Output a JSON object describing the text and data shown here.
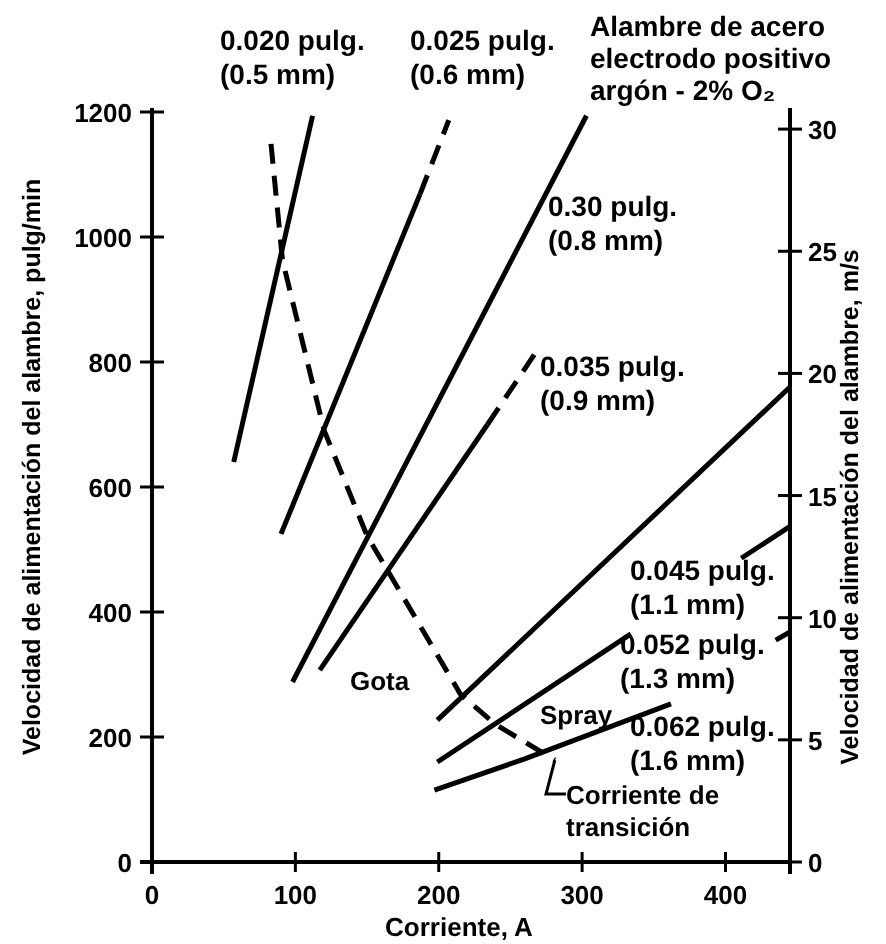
{
  "chart_data": {
    "type": "line",
    "title": "Alambre de acero electrodo positivo argón - 2% O₂",
    "xlabel": "Corriente, A",
    "ylabel": "Velocidad de alimentación del alambre, pulg/min",
    "y2label": "Velocidad de alimentación del alambre, m/s",
    "xlim": [
      0,
      445
    ],
    "xticks": [
      0,
      100,
      200,
      300,
      400
    ],
    "ylim": [
      0,
      1200
    ],
    "yticks": [
      0,
      200,
      400,
      600,
      800,
      1000,
      1200
    ],
    "y2lim": [
      0,
      30.7
    ],
    "y2ticks": [
      0,
      5,
      10,
      15,
      20,
      25,
      30
    ],
    "grid": false,
    "line_style": "solid",
    "series": [
      {
        "name": "0.020 pulg. (0.5 mm)",
        "color": "#000000",
        "x": [
          57,
          112
        ],
        "values": [
          640,
          1194
        ]
      },
      {
        "color": "#000000",
        "x": [
          90,
          187
        ],
        "values": [
          525,
          1069
        ]
      },
      {
        "name": "0.025 pulg. (0.6 mm)",
        "color": "#000000",
        "line_style": "dashed",
        "x": [
          187,
          207
        ],
        "values": [
          1069,
          1187
        ]
      },
      {
        "name": "0.30 pulg. (0.8 mm)",
        "color": "#000000",
        "x": [
          98,
          303
        ],
        "values": [
          288,
          1194
        ]
      },
      {
        "name": "0.035 pulg. (0.9 mm)",
        "color": "#000000",
        "x": [
          117,
          234
        ],
        "values": [
          307,
          700
        ]
      },
      {
        "color": "#000000",
        "line_style": "dashed",
        "x": [
          234,
          267
        ],
        "values": [
          700,
          813
        ]
      },
      {
        "name": "0.045 pulg. (1.1 mm)",
        "color": "#000000",
        "x": [
          199,
          445
        ],
        "values": [
          227,
          760
        ]
      },
      {
        "name": "0.052 pulg. (1.3 mm)",
        "color": "#000000",
        "x": [
          199,
          334,
          372,
          411,
          445
        ],
        "values": [
          160,
          365,
          null,
          486,
          537
        ]
      },
      {
        "name": "0.062 pulg. (1.6 mm)",
        "color": "#000000",
        "x": [
          197,
          260,
          362,
          400,
          435,
          445
        ],
        "values": [
          115,
          165,
          253,
          null,
          355,
          368
        ]
      },
      {
        "color": "#000000",
        "line_style": "dashed",
        "x": [
          83,
          91,
          120,
          150,
          215,
          239,
          281
        ],
        "values": [
          1149,
          963,
          691,
          522,
          269,
          221,
          163
        ]
      }
    ],
    "annotations": [
      "Gota",
      "Spray",
      {
        "text": "Corriente de transición",
        "x": 281,
        "y": 163
      }
    ]
  }
}
